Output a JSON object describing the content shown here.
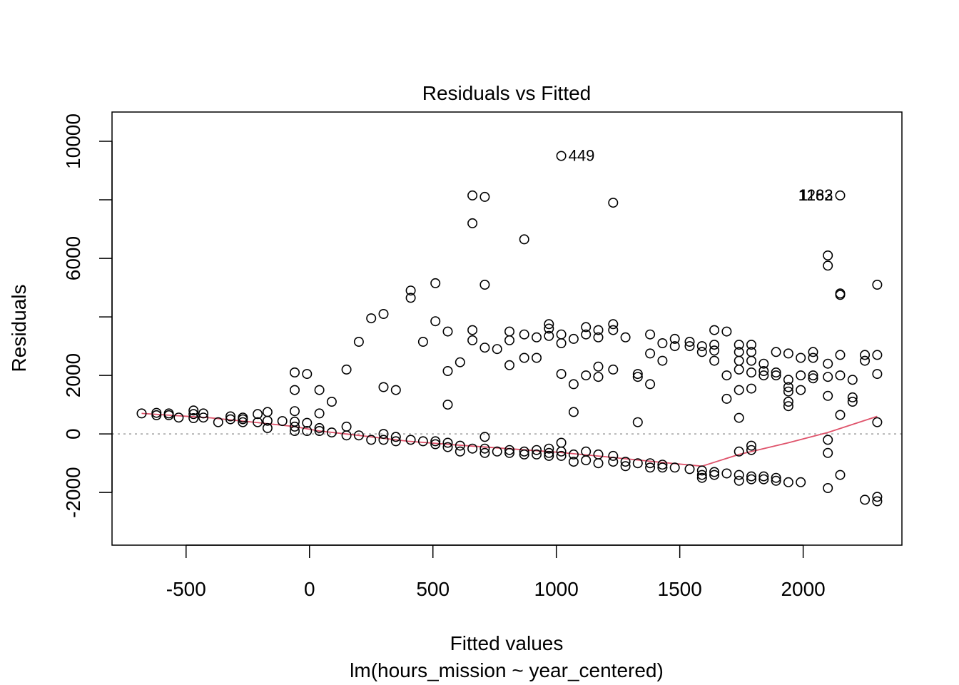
{
  "chart_data": {
    "type": "scatter",
    "title": "Residuals vs Fitted",
    "xlabel": "Fitted values",
    "subtitle": "lm(hours_mission ~ year_centered)",
    "ylabel": "Residuals",
    "xlim": [
      -800,
      2400
    ],
    "ylim": [
      -3800,
      11000
    ],
    "x_ticks": [
      -500,
      0,
      500,
      1000,
      1500,
      2000
    ],
    "x_tick_labels": [
      "-500",
      "0",
      "500",
      "1000",
      "1500",
      "2000"
    ],
    "y_ticks": [
      -2000,
      0,
      2000,
      6000,
      10000
    ],
    "y_tick_labels": [
      "-2000",
      "0",
      "2000",
      "6000",
      "10000"
    ],
    "reference_line_y": 0,
    "colors": {
      "points": "#000000",
      "smoother": "#DF536B",
      "reference": "#9E9E9E"
    },
    "points": [
      [
        -680,
        700
      ],
      [
        -620,
        720
      ],
      [
        -620,
        640
      ],
      [
        -570,
        700
      ],
      [
        -570,
        640
      ],
      [
        -530,
        560
      ],
      [
        -470,
        800
      ],
      [
        -470,
        680
      ],
      [
        -470,
        540
      ],
      [
        -430,
        700
      ],
      [
        -430,
        560
      ],
      [
        -370,
        400
      ],
      [
        -320,
        600
      ],
      [
        -320,
        500
      ],
      [
        -270,
        560
      ],
      [
        -270,
        500
      ],
      [
        -270,
        400
      ],
      [
        -210,
        680
      ],
      [
        -210,
        400
      ],
      [
        -170,
        750
      ],
      [
        -170,
        450
      ],
      [
        -170,
        200
      ],
      [
        -110,
        440
      ],
      [
        -60,
        780
      ],
      [
        -60,
        420
      ],
      [
        -60,
        250
      ],
      [
        -60,
        100
      ],
      [
        -60,
        1500
      ],
      [
        -60,
        2100
      ],
      [
        -10,
        380
      ],
      [
        -10,
        100
      ],
      [
        -10,
        2050
      ],
      [
        40,
        700
      ],
      [
        40,
        200
      ],
      [
        40,
        100
      ],
      [
        40,
        1500
      ],
      [
        90,
        1100
      ],
      [
        90,
        50
      ],
      [
        150,
        2200
      ],
      [
        150,
        250
      ],
      [
        150,
        -50
      ],
      [
        200,
        3150
      ],
      [
        200,
        -50
      ],
      [
        250,
        3950
      ],
      [
        250,
        -200
      ],
      [
        300,
        4100
      ],
      [
        300,
        1600
      ],
      [
        300,
        0
      ],
      [
        300,
        -200
      ],
      [
        350,
        1500
      ],
      [
        350,
        -100
      ],
      [
        350,
        -250
      ],
      [
        410,
        4900
      ],
      [
        410,
        4650
      ],
      [
        410,
        -200
      ],
      [
        460,
        3150
      ],
      [
        460,
        -250
      ],
      [
        510,
        5150
      ],
      [
        510,
        3850
      ],
      [
        510,
        -250
      ],
      [
        510,
        -350
      ],
      [
        560,
        3500
      ],
      [
        560,
        2150
      ],
      [
        560,
        1000
      ],
      [
        560,
        -300
      ],
      [
        560,
        -450
      ],
      [
        610,
        2450
      ],
      [
        610,
        -400
      ],
      [
        610,
        -600
      ],
      [
        660,
        8150
      ],
      [
        660,
        7200
      ],
      [
        660,
        3550
      ],
      [
        660,
        3200
      ],
      [
        660,
        -500
      ],
      [
        710,
        8100
      ],
      [
        710,
        5100
      ],
      [
        710,
        2950
      ],
      [
        710,
        -100
      ],
      [
        710,
        -500
      ],
      [
        710,
        -650
      ],
      [
        760,
        2900
      ],
      [
        760,
        -600
      ],
      [
        810,
        3500
      ],
      [
        810,
        3200
      ],
      [
        810,
        2350
      ],
      [
        810,
        -550
      ],
      [
        810,
        -650
      ],
      [
        870,
        6650
      ],
      [
        870,
        3400
      ],
      [
        870,
        2600
      ],
      [
        870,
        -600
      ],
      [
        870,
        -700
      ],
      [
        920,
        3300
      ],
      [
        920,
        2600
      ],
      [
        920,
        -550
      ],
      [
        920,
        -700
      ],
      [
        970,
        3750
      ],
      [
        970,
        3600
      ],
      [
        970,
        3350
      ],
      [
        970,
        -500
      ],
      [
        970,
        -650
      ],
      [
        970,
        -750
      ],
      [
        1020,
        9500
      ],
      [
        1020,
        3400
      ],
      [
        1020,
        3100
      ],
      [
        1020,
        2050
      ],
      [
        1020,
        -300
      ],
      [
        1020,
        -600
      ],
      [
        1020,
        -750
      ],
      [
        1070,
        3250
      ],
      [
        1070,
        1700
      ],
      [
        1070,
        750
      ],
      [
        1070,
        -700
      ],
      [
        1070,
        -950
      ],
      [
        1120,
        3650
      ],
      [
        1120,
        3400
      ],
      [
        1120,
        2000
      ],
      [
        1120,
        -600
      ],
      [
        1120,
        -900
      ],
      [
        1170,
        3550
      ],
      [
        1170,
        3300
      ],
      [
        1170,
        2300
      ],
      [
        1170,
        1950
      ],
      [
        1170,
        -700
      ],
      [
        1170,
        -1000
      ],
      [
        1230,
        7900
      ],
      [
        1230,
        3750
      ],
      [
        1230,
        3550
      ],
      [
        1230,
        2200
      ],
      [
        1230,
        -750
      ],
      [
        1230,
        -950
      ],
      [
        1280,
        3300
      ],
      [
        1280,
        -950
      ],
      [
        1280,
        -1100
      ],
      [
        1330,
        2050
      ],
      [
        1330,
        1950
      ],
      [
        1330,
        400
      ],
      [
        1330,
        -1000
      ],
      [
        1380,
        3400
      ],
      [
        1380,
        2750
      ],
      [
        1380,
        1700
      ],
      [
        1380,
        -1000
      ],
      [
        1380,
        -1150
      ],
      [
        1430,
        3100
      ],
      [
        1430,
        2500
      ],
      [
        1430,
        -1050
      ],
      [
        1430,
        -1150
      ],
      [
        1480,
        3250
      ],
      [
        1480,
        3000
      ],
      [
        1480,
        -1150
      ],
      [
        1540,
        3150
      ],
      [
        1540,
        3000
      ],
      [
        1540,
        -1200
      ],
      [
        1590,
        3000
      ],
      [
        1590,
        2800
      ],
      [
        1590,
        -1250
      ],
      [
        1590,
        -1400
      ],
      [
        1590,
        -1500
      ],
      [
        1640,
        3550
      ],
      [
        1640,
        3050
      ],
      [
        1640,
        2850
      ],
      [
        1640,
        2500
      ],
      [
        1640,
        -1300
      ],
      [
        1640,
        -1400
      ],
      [
        1690,
        3500
      ],
      [
        1690,
        2000
      ],
      [
        1690,
        1200
      ],
      [
        1690,
        -1350
      ],
      [
        1740,
        3050
      ],
      [
        1740,
        2800
      ],
      [
        1740,
        2500
      ],
      [
        1740,
        2200
      ],
      [
        1740,
        1500
      ],
      [
        1740,
        550
      ],
      [
        1740,
        -600
      ],
      [
        1740,
        -1400
      ],
      [
        1740,
        -1600
      ],
      [
        1790,
        3050
      ],
      [
        1790,
        2800
      ],
      [
        1790,
        2500
      ],
      [
        1790,
        2100
      ],
      [
        1790,
        1550
      ],
      [
        1790,
        -400
      ],
      [
        1790,
        -550
      ],
      [
        1790,
        -1450
      ],
      [
        1790,
        -1550
      ],
      [
        1840,
        2400
      ],
      [
        1840,
        2150
      ],
      [
        1840,
        2000
      ],
      [
        1840,
        -1450
      ],
      [
        1840,
        -1550
      ],
      [
        1890,
        2800
      ],
      [
        1890,
        2100
      ],
      [
        1890,
        2000
      ],
      [
        1890,
        -1500
      ],
      [
        1890,
        -1600
      ],
      [
        1940,
        2750
      ],
      [
        1940,
        1850
      ],
      [
        1940,
        1600
      ],
      [
        1940,
        1450
      ],
      [
        1940,
        1100
      ],
      [
        1940,
        950
      ],
      [
        1940,
        -1650
      ],
      [
        1990,
        2600
      ],
      [
        1990,
        2000
      ],
      [
        1990,
        1500
      ],
      [
        1990,
        -1650
      ],
      [
        2040,
        2800
      ],
      [
        2040,
        2600
      ],
      [
        2040,
        2000
      ],
      [
        2040,
        1900
      ],
      [
        2100,
        6100
      ],
      [
        2100,
        5750
      ],
      [
        2100,
        2400
      ],
      [
        2100,
        1950
      ],
      [
        2100,
        1300
      ],
      [
        2100,
        -200
      ],
      [
        2100,
        -650
      ],
      [
        2100,
        -1850
      ],
      [
        2150,
        8150
      ],
      [
        2150,
        4800
      ],
      [
        2150,
        4750
      ],
      [
        2150,
        2700
      ],
      [
        2150,
        2000
      ],
      [
        2150,
        650
      ],
      [
        2150,
        -1400
      ],
      [
        2200,
        1850
      ],
      [
        2200,
        1250
      ],
      [
        2200,
        1100
      ],
      [
        2250,
        2700
      ],
      [
        2250,
        2500
      ],
      [
        2250,
        -2250
      ],
      [
        2300,
        5100
      ],
      [
        2300,
        2700
      ],
      [
        2300,
        2050
      ],
      [
        2300,
        400
      ],
      [
        2300,
        -2150
      ],
      [
        2300,
        -2300
      ]
    ],
    "labels": [
      {
        "text": "449",
        "x": 1020,
        "y": 9500
      },
      {
        "text": "1163",
        "x": 2150,
        "y": 8150
      },
      {
        "text": "1282",
        "x": 2150,
        "y": 8150
      }
    ],
    "smoother": [
      [
        -680,
        700
      ],
      [
        -400,
        550
      ],
      [
        -200,
        380
      ],
      [
        -60,
        250
      ],
      [
        40,
        100
      ],
      [
        200,
        -50
      ],
      [
        400,
        -250
      ],
      [
        600,
        -380
      ],
      [
        800,
        -500
      ],
      [
        1000,
        -620
      ],
      [
        1200,
        -780
      ],
      [
        1400,
        -950
      ],
      [
        1590,
        -1100
      ],
      [
        1740,
        -700
      ],
      [
        1940,
        -300
      ],
      [
        2100,
        50
      ],
      [
        2300,
        600
      ]
    ]
  }
}
